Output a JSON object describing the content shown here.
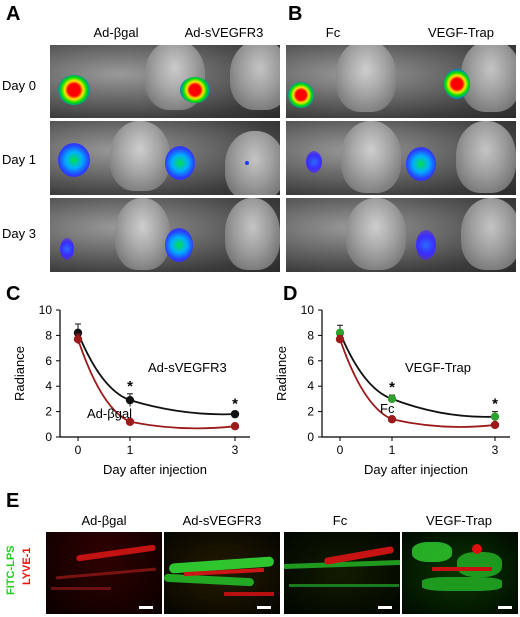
{
  "panels": {
    "A": {
      "letter": "A",
      "columns": [
        "Ad-βgal",
        "Ad-sVEGFR3"
      ],
      "rows": [
        "Day 0",
        "Day 1",
        "Day 3"
      ]
    },
    "B": {
      "letter": "B",
      "columns": [
        "Fc",
        "VEGF-Trap"
      ]
    },
    "C": {
      "letter": "C"
    },
    "D": {
      "letter": "D"
    },
    "E": {
      "letter": "E",
      "columns": [
        "Ad-βgal",
        "Ad-sVEGFR3",
        "Fc",
        "VEGF-Trap"
      ],
      "stain_green": "FITC-LPS",
      "stain_red": "LYVE-1",
      "stain_green_color": "#22dd22",
      "stain_red_color": "#ee1111"
    }
  },
  "chart_data": [
    {
      "type": "line",
      "panel": "C",
      "x": [
        0,
        1,
        3
      ],
      "ylabel": "Radiance",
      "xlabel": "Day after injection",
      "ylim": [
        0,
        10
      ],
      "yticks": [
        0,
        2,
        4,
        6,
        8,
        10
      ],
      "xticks": [
        "0",
        "1",
        "3"
      ],
      "series": [
        {
          "name": "Ad-sVEGFR3",
          "color": "#111111",
          "values": [
            8.2,
            2.9,
            1.8
          ],
          "errors": [
            0.7,
            0.5,
            0.2
          ]
        },
        {
          "name": "Ad-βgal",
          "color": "#9b1a1a",
          "values": [
            7.7,
            1.2,
            0.85
          ],
          "errors": [
            0.4,
            0.1,
            0.1
          ]
        }
      ],
      "annotations": [
        "*",
        "*"
      ]
    },
    {
      "type": "line",
      "panel": "D",
      "x": [
        0,
        1,
        3
      ],
      "ylabel": "Radiance",
      "xlabel": "Day after injection",
      "ylim": [
        0,
        10
      ],
      "yticks": [
        0,
        2,
        4,
        6,
        8,
        10
      ],
      "xticks": [
        "0",
        "1",
        "3"
      ],
      "series": [
        {
          "name": "VEGF-Trap",
          "color": "#111111",
          "marker_color": "#2ea02e",
          "values": [
            8.2,
            3.0,
            1.6
          ],
          "errors": [
            0.6,
            0.3,
            0.4
          ]
        },
        {
          "name": "Fc",
          "color": "#9b1a1a",
          "values": [
            7.7,
            1.4,
            0.95
          ],
          "errors": [
            0.3,
            0.15,
            0.1
          ]
        }
      ],
      "annotations": [
        "*",
        "*"
      ]
    }
  ]
}
